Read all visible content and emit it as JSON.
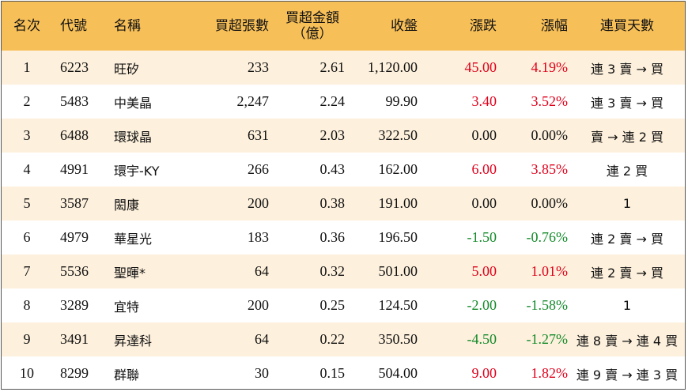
{
  "headers": {
    "rank": "名次",
    "code": "代號",
    "name": "名稱",
    "net_lots": "買超張數",
    "net_amount_line1": "買超金額",
    "net_amount_line2": "（億）",
    "close": "收盤",
    "change": "漲跌",
    "change_pct": "漲幅",
    "streak": "連買天數"
  },
  "rows": [
    {
      "rank": "1",
      "code": "6223",
      "name": "旺矽",
      "lots": "233",
      "amount": "2.61",
      "close": "1,120.00",
      "change": "45.00",
      "pct": "4.19%",
      "streak": "連 3 賣 → 買",
      "trend": "pos"
    },
    {
      "rank": "2",
      "code": "5483",
      "name": "中美晶",
      "lots": "2,247",
      "amount": "2.24",
      "close": "99.90",
      "change": "3.40",
      "pct": "3.52%",
      "streak": "連 3 賣 → 買",
      "trend": "pos"
    },
    {
      "rank": "3",
      "code": "6488",
      "name": "環球晶",
      "lots": "631",
      "amount": "2.03",
      "close": "322.50",
      "change": "0.00",
      "pct": "0.00%",
      "streak": "賣 → 連 2 買",
      "trend": "zero"
    },
    {
      "rank": "4",
      "code": "4991",
      "name": "環宇-KY",
      "lots": "266",
      "amount": "0.43",
      "close": "162.00",
      "change": "6.00",
      "pct": "3.85%",
      "streak": "連 2 買",
      "trend": "pos"
    },
    {
      "rank": "5",
      "code": "3587",
      "name": "閎康",
      "lots": "200",
      "amount": "0.38",
      "close": "191.00",
      "change": "0.00",
      "pct": "0.00%",
      "streak": "1",
      "trend": "zero"
    },
    {
      "rank": "6",
      "code": "4979",
      "name": "華星光",
      "lots": "183",
      "amount": "0.36",
      "close": "196.50",
      "change": "-1.50",
      "pct": "-0.76%",
      "streak": "連 2 賣 → 買",
      "trend": "neg"
    },
    {
      "rank": "7",
      "code": "5536",
      "name": "聖暉*",
      "lots": "64",
      "amount": "0.32",
      "close": "501.00",
      "change": "5.00",
      "pct": "1.01%",
      "streak": "連 2 賣 → 買",
      "trend": "pos"
    },
    {
      "rank": "8",
      "code": "3289",
      "name": "宜特",
      "lots": "200",
      "amount": "0.25",
      "close": "124.50",
      "change": "-2.00",
      "pct": "-1.58%",
      "streak": "1",
      "trend": "neg"
    },
    {
      "rank": "9",
      "code": "3491",
      "name": "昇達科",
      "lots": "64",
      "amount": "0.22",
      "close": "350.50",
      "change": "-4.50",
      "pct": "-1.27%",
      "streak": "連 8 賣 → 連 4 買",
      "trend": "neg"
    },
    {
      "rank": "10",
      "code": "8299",
      "name": "群聯",
      "lots": "30",
      "amount": "0.15",
      "close": "504.00",
      "change": "9.00",
      "pct": "1.82%",
      "streak": "連 9 賣 → 連 3 買",
      "trend": "pos"
    }
  ],
  "colors": {
    "header_bg": "#f7bf58",
    "odd_row_bg": "#fdf0dc",
    "up": "#e0001b",
    "down": "#138a2a"
  }
}
